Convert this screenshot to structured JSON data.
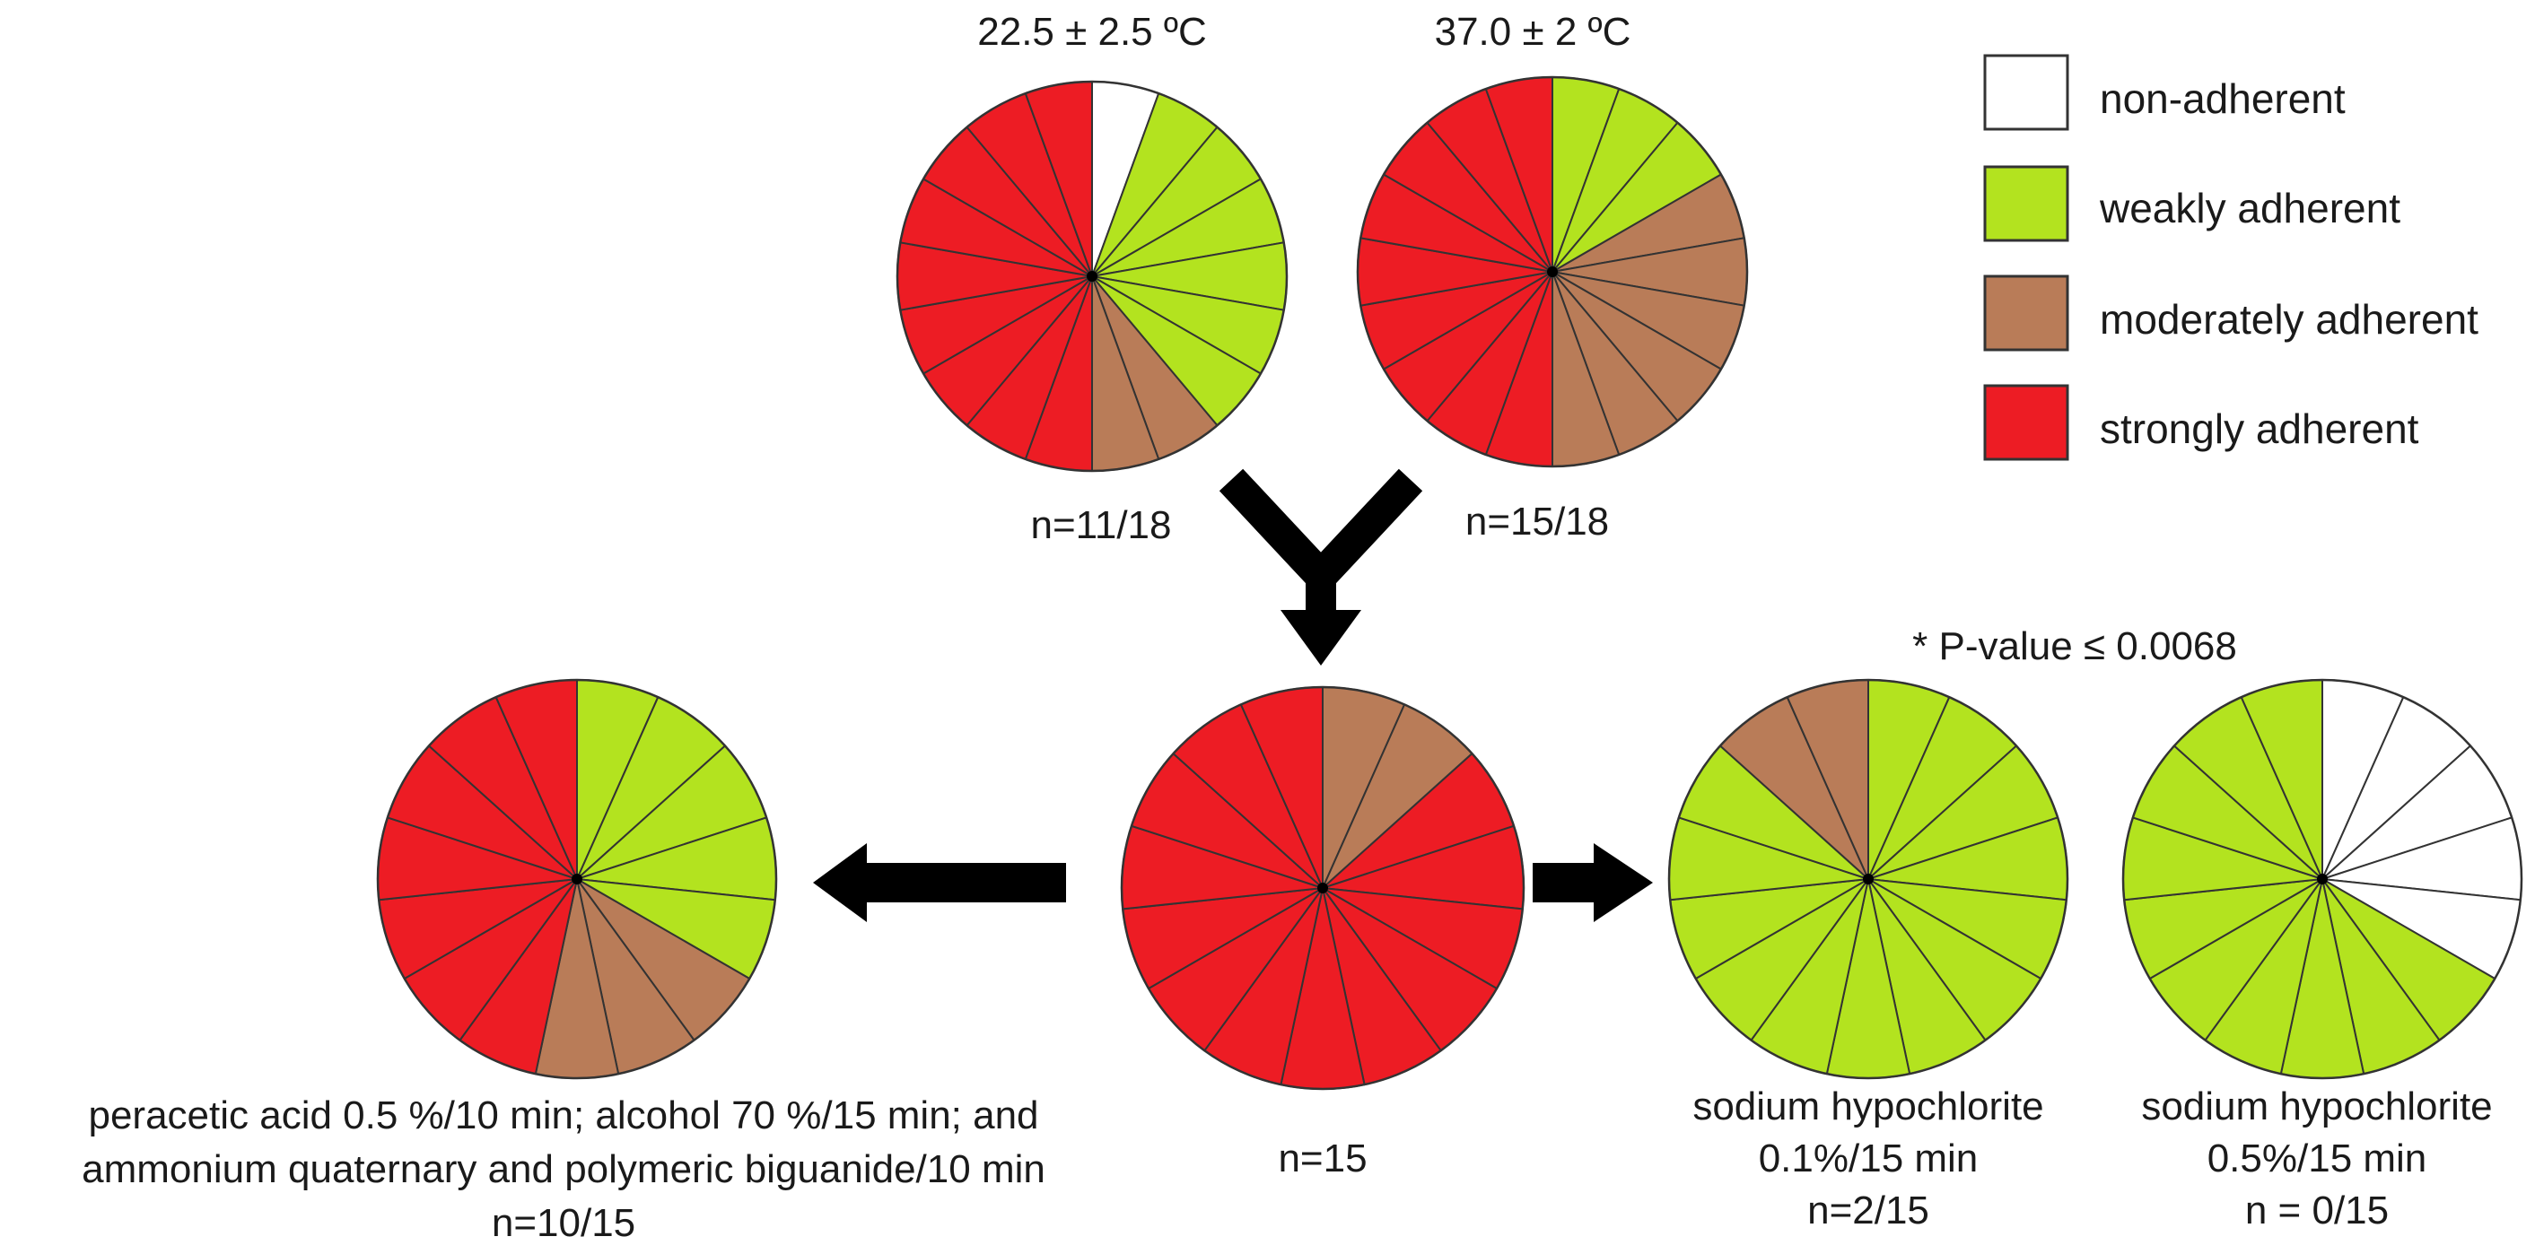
{
  "colors": {
    "non_adherent": "#ffffff",
    "weakly_adherent": "#b3e31f",
    "moderately_adherent": "#b97c58",
    "strongly_adherent": "#ed1c24",
    "segment_stroke": "#333333",
    "arrow": "#000000"
  },
  "legend": [
    {
      "key": "non_adherent",
      "label": "non-adherent"
    },
    {
      "key": "weakly_adherent",
      "label": "weakly adherent"
    },
    {
      "key": "moderately_adherent",
      "label": "moderately adherent"
    },
    {
      "key": "strongly_adherent",
      "label": "strongly adherent"
    }
  ],
  "pies": [
    {
      "id": "pie-22c",
      "title": "22.5 ± 2.5 ºC",
      "caption": [
        "n=11/18"
      ],
      "counts": {
        "non_adherent": 1,
        "weakly_adherent": 6,
        "moderately_adherent": 2,
        "strongly_adherent": 9
      }
    },
    {
      "id": "pie-37c",
      "title": "37.0 ± 2 ºC",
      "caption": [
        "n=15/18"
      ],
      "counts": {
        "non_adherent": 0,
        "weakly_adherent": 3,
        "moderately_adherent": 6,
        "strongly_adherent": 9
      }
    },
    {
      "id": "pie-combined",
      "title": "",
      "caption": [
        "n=15"
      ],
      "counts": {
        "non_adherent": 0,
        "weakly_adherent": 0,
        "moderately_adherent": 2,
        "strongly_adherent": 13
      }
    },
    {
      "id": "pie-peracetic",
      "title": "",
      "caption": [
        "peracetic acid 0.5 %/10 min; alcohol 70 %/15 min; and",
        "ammonium quaternary and polymeric biguanide/10 min",
        "n=10/15"
      ],
      "counts": {
        "non_adherent": 0,
        "weakly_adherent": 5,
        "moderately_adherent": 3,
        "strongly_adherent": 7
      }
    },
    {
      "id": "pie-hypochlorite-01",
      "title": "",
      "caption": [
        "sodium hypochlorite",
        "0.1%/15 min",
        "n=2/15"
      ],
      "counts": {
        "non_adherent": 0,
        "weakly_adherent": 13,
        "moderately_adherent": 2,
        "strongly_adherent": 0
      }
    },
    {
      "id": "pie-hypochlorite-05",
      "title": "",
      "caption": [
        "sodium hypochlorite",
        "0.5%/15 min",
        "n = 0/15"
      ],
      "counts": {
        "non_adherent": 5,
        "weakly_adherent": 10,
        "moderately_adherent": 0,
        "strongly_adherent": 0
      }
    }
  ],
  "significance_note": "* P-value ≤ 0.0068"
}
